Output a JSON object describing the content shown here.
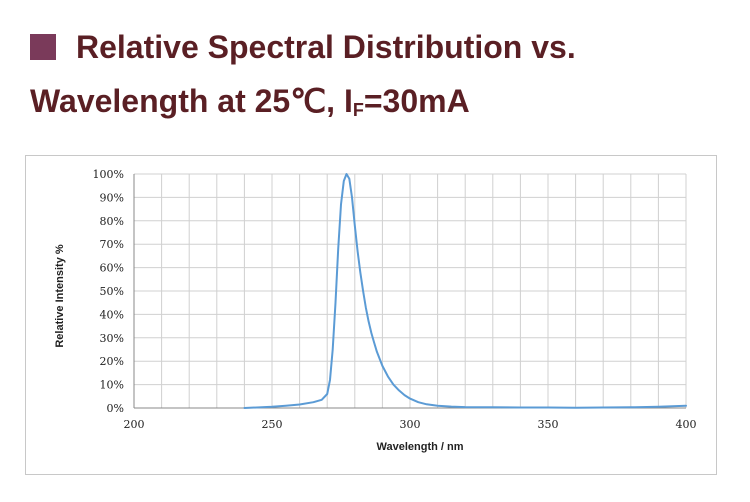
{
  "header": {
    "title_line1": "Relative Spectral Distribution vs.",
    "title_line2_prefix": "Wavelength at 25℃, I",
    "title_line2_sub": "F",
    "title_line2_suffix": "=30mA",
    "bullet_color": "#7a3a5a",
    "title_color": "#5a1f24"
  },
  "chart_data": {
    "type": "line",
    "xlabel": "Wavelength / nm",
    "ylabel": "Relative Intensity %",
    "xlim": [
      200,
      400
    ],
    "ylim": [
      0,
      100
    ],
    "x_ticks": [
      200,
      250,
      300,
      350,
      400
    ],
    "x_tick_labels": [
      "200",
      "250",
      "300",
      "350",
      "400"
    ],
    "y_ticks": [
      0,
      10,
      20,
      30,
      40,
      50,
      60,
      70,
      80,
      90,
      100
    ],
    "y_tick_labels": [
      "0%",
      "10%",
      "20%",
      "30%",
      "40%",
      "50%",
      "60%",
      "70%",
      "80%",
      "90%",
      "100%"
    ],
    "grid": true,
    "line_color": "#5b9bd5",
    "series": [
      {
        "x": [
          240,
          250,
          255,
          260,
          265,
          268,
          270,
          271,
          272,
          273,
          274,
          275,
          276,
          277,
          278,
          279,
          280,
          281,
          282,
          283,
          284,
          285,
          286,
          287,
          288,
          290,
          292,
          294,
          296,
          298,
          300,
          303,
          306,
          310,
          315,
          320,
          330,
          340,
          350,
          360,
          370,
          380,
          390,
          400
        ],
        "y": [
          0,
          0.5,
          1,
          1.5,
          2.5,
          3.5,
          6,
          12,
          25,
          45,
          68,
          87,
          97,
          100,
          98,
          90,
          78,
          67,
          58,
          50,
          43,
          37,
          32,
          28,
          24,
          18,
          13.5,
          10,
          7.5,
          5.5,
          4,
          2.5,
          1.6,
          1,
          0.6,
          0.4,
          0.3,
          0.2,
          0.2,
          0.1,
          0.2,
          0.3,
          0.5,
          1
        ]
      }
    ]
  }
}
